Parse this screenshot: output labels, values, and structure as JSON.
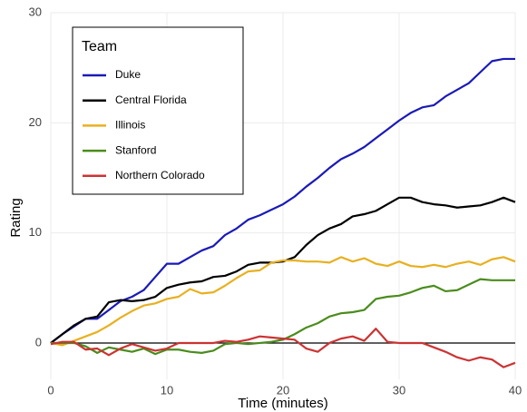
{
  "chart_data": {
    "type": "line",
    "x_label": "Time (minutes)",
    "y_label": "Rating",
    "legend_title": "Team",
    "x": [
      0,
      1,
      2,
      3,
      4,
      5,
      6,
      7,
      8,
      9,
      10,
      11,
      12,
      13,
      14,
      15,
      16,
      17,
      18,
      19,
      20,
      21,
      22,
      23,
      24,
      25,
      26,
      27,
      28,
      29,
      30,
      31,
      32,
      33,
      34,
      35,
      36,
      37,
      38,
      39,
      40
    ],
    "series": [
      {
        "name": "Duke",
        "color": "#1a1ab8",
        "values": [
          0,
          0.8,
          1.5,
          2.2,
          2.2,
          3,
          3.8,
          4.2,
          4.8,
          6,
          7.2,
          7.2,
          7.8,
          8.4,
          8.8,
          9.8,
          10.4,
          11.2,
          11.6,
          12.1,
          12.6,
          13.3,
          14.2,
          15,
          15.9,
          16.7,
          17.2,
          17.8,
          18.6,
          19.4,
          20.2,
          20.9,
          21.4,
          21.6,
          22.4,
          23,
          23.6,
          24.6,
          25.6,
          25.8,
          25.8
        ]
      },
      {
        "name": "Central Florida",
        "color": "#000000",
        "values": [
          0,
          0.8,
          1.6,
          2.2,
          2.4,
          3.7,
          3.9,
          3.8,
          3.9,
          4.2,
          5,
          5.3,
          5.5,
          5.6,
          6,
          6.1,
          6.5,
          7.1,
          7.3,
          7.3,
          7.4,
          7.8,
          8.9,
          9.8,
          10.4,
          10.8,
          11.5,
          11.7,
          12,
          12.6,
          13.2,
          13.2,
          12.8,
          12.6,
          12.5,
          12.3,
          12.4,
          12.5,
          12.8,
          13.2,
          12.8
        ]
      },
      {
        "name": "Illinois",
        "color": "#e8b020",
        "values": [
          0,
          -0.2,
          0.2,
          0.6,
          1,
          1.6,
          2.3,
          2.9,
          3.4,
          3.6,
          4,
          4.2,
          4.9,
          4.5,
          4.6,
          5.2,
          5.9,
          6.5,
          6.6,
          7.3,
          7.5,
          7.5,
          7.4,
          7.4,
          7.3,
          7.8,
          7.4,
          7.7,
          7.2,
          7,
          7.4,
          7,
          6.9,
          7.1,
          6.9,
          7.2,
          7.4,
          7.1,
          7.6,
          7.8,
          7.4
        ]
      },
      {
        "name": "Stanford",
        "color": "#4a8c1c",
        "values": [
          0,
          0,
          0,
          -0.3,
          -0.9,
          -0.4,
          -0.6,
          -0.8,
          -0.5,
          -1,
          -0.6,
          -0.6,
          -0.8,
          -0.9,
          -0.7,
          -0.1,
          0,
          -0.1,
          0,
          0.1,
          0.3,
          0.8,
          1.4,
          1.8,
          2.4,
          2.7,
          2.8,
          3,
          4,
          4.2,
          4.3,
          4.6,
          5,
          5.2,
          4.7,
          4.8,
          5.3,
          5.8,
          5.7,
          5.7,
          5.7
        ]
      },
      {
        "name": "Northern Colorado",
        "color": "#cc3333",
        "values": [
          -0.1,
          0.1,
          0.1,
          -0.6,
          -0.5,
          -1.1,
          -0.5,
          -0.1,
          -0.4,
          -0.7,
          -0.5,
          0,
          0,
          0,
          0,
          0.2,
          0.1,
          0.3,
          0.6,
          0.5,
          0.4,
          0.3,
          -0.5,
          -0.8,
          0,
          0.4,
          0.6,
          0.2,
          1.3,
          0.1,
          0,
          0,
          0,
          -0.4,
          -0.8,
          -1.3,
          -1.6,
          -1.3,
          -1.5,
          -2.2,
          -1.8
        ]
      }
    ],
    "xlim": [
      0,
      40
    ],
    "xticks": [
      0,
      10,
      20,
      30,
      40
    ],
    "ylim": [
      -3.3,
      30
    ],
    "yticks": [
      0,
      10,
      20,
      30
    ],
    "grid": true,
    "zero_line": true,
    "legend": "upper left"
  }
}
